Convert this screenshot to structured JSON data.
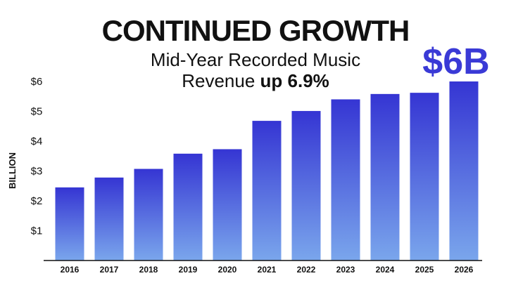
{
  "chart_data": {
    "type": "bar",
    "title": "CONTINUED GROWTH",
    "subtitle_line1": "Mid-Year Recorded Music",
    "subtitle_line2_prefix": "Revenue ",
    "subtitle_line2_bold": "up 6.9%",
    "ylabel": "BILLION",
    "xlabel": "",
    "callout": "$6B",
    "categories": [
      "2016",
      "2017",
      "2018",
      "2019",
      "2020",
      "2021",
      "2022",
      "2023",
      "2024",
      "2025",
      "2026"
    ],
    "values": [
      2.45,
      2.78,
      3.07,
      3.58,
      3.73,
      4.68,
      5.01,
      5.4,
      5.58,
      5.62,
      6.0
    ],
    "ylim": [
      0,
      6
    ],
    "yticks": [
      1,
      2,
      3,
      4,
      5,
      6
    ],
    "ytick_labels": [
      "$1",
      "$2",
      "$3",
      "$4",
      "$5",
      "$6"
    ],
    "grid": false,
    "colors": {
      "bar_top": "#3535d3",
      "bar_bottom": "#7aa6ec",
      "callout": "#3a3ad6",
      "axis": "#111111"
    }
  }
}
